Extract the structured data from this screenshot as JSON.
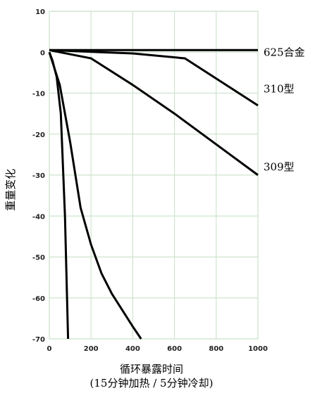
{
  "chart_data": {
    "type": "line",
    "title": "",
    "xlabel": "循环暴露时间",
    "xlabel_sub": "(15分钟加热 / 5分钟冷却)",
    "ylabel": "重量变化",
    "xlim": [
      0,
      1000
    ],
    "ylim": [
      -70,
      10
    ],
    "xticks": [
      0,
      200,
      400,
      600,
      800,
      1000
    ],
    "yticks": [
      10,
      0,
      -10,
      -20,
      -30,
      -40,
      -50,
      -60,
      -70
    ],
    "grid": true,
    "grid_color": "#cfe4cf",
    "line_color": "#000000",
    "series": [
      {
        "name": "625合金",
        "label_y": 0,
        "x": [
          0,
          1000
        ],
        "y": [
          0.5,
          0.5
        ]
      },
      {
        "name": "310型",
        "label_y": -9,
        "x": [
          0,
          400,
          650,
          1000
        ],
        "y": [
          0.5,
          -0.3,
          -1.5,
          -13
        ]
      },
      {
        "name": "309型",
        "label_y": -28,
        "x": [
          0,
          200,
          400,
          600,
          800,
          1000
        ],
        "y": [
          0.5,
          -1.5,
          -8,
          -15,
          -22.5,
          -30
        ]
      },
      {
        "name": "",
        "x": [
          0,
          50,
          100,
          150,
          200,
          250,
          300,
          350,
          400,
          440
        ],
        "y": [
          0,
          -8,
          -22,
          -38,
          -47,
          -54,
          -59,
          -63,
          -67,
          -70
        ]
      },
      {
        "name": "",
        "x": [
          0,
          15,
          35,
          55,
          75,
          90
        ],
        "y": [
          0,
          -2,
          -6,
          -15,
          -40,
          -70
        ]
      }
    ]
  }
}
